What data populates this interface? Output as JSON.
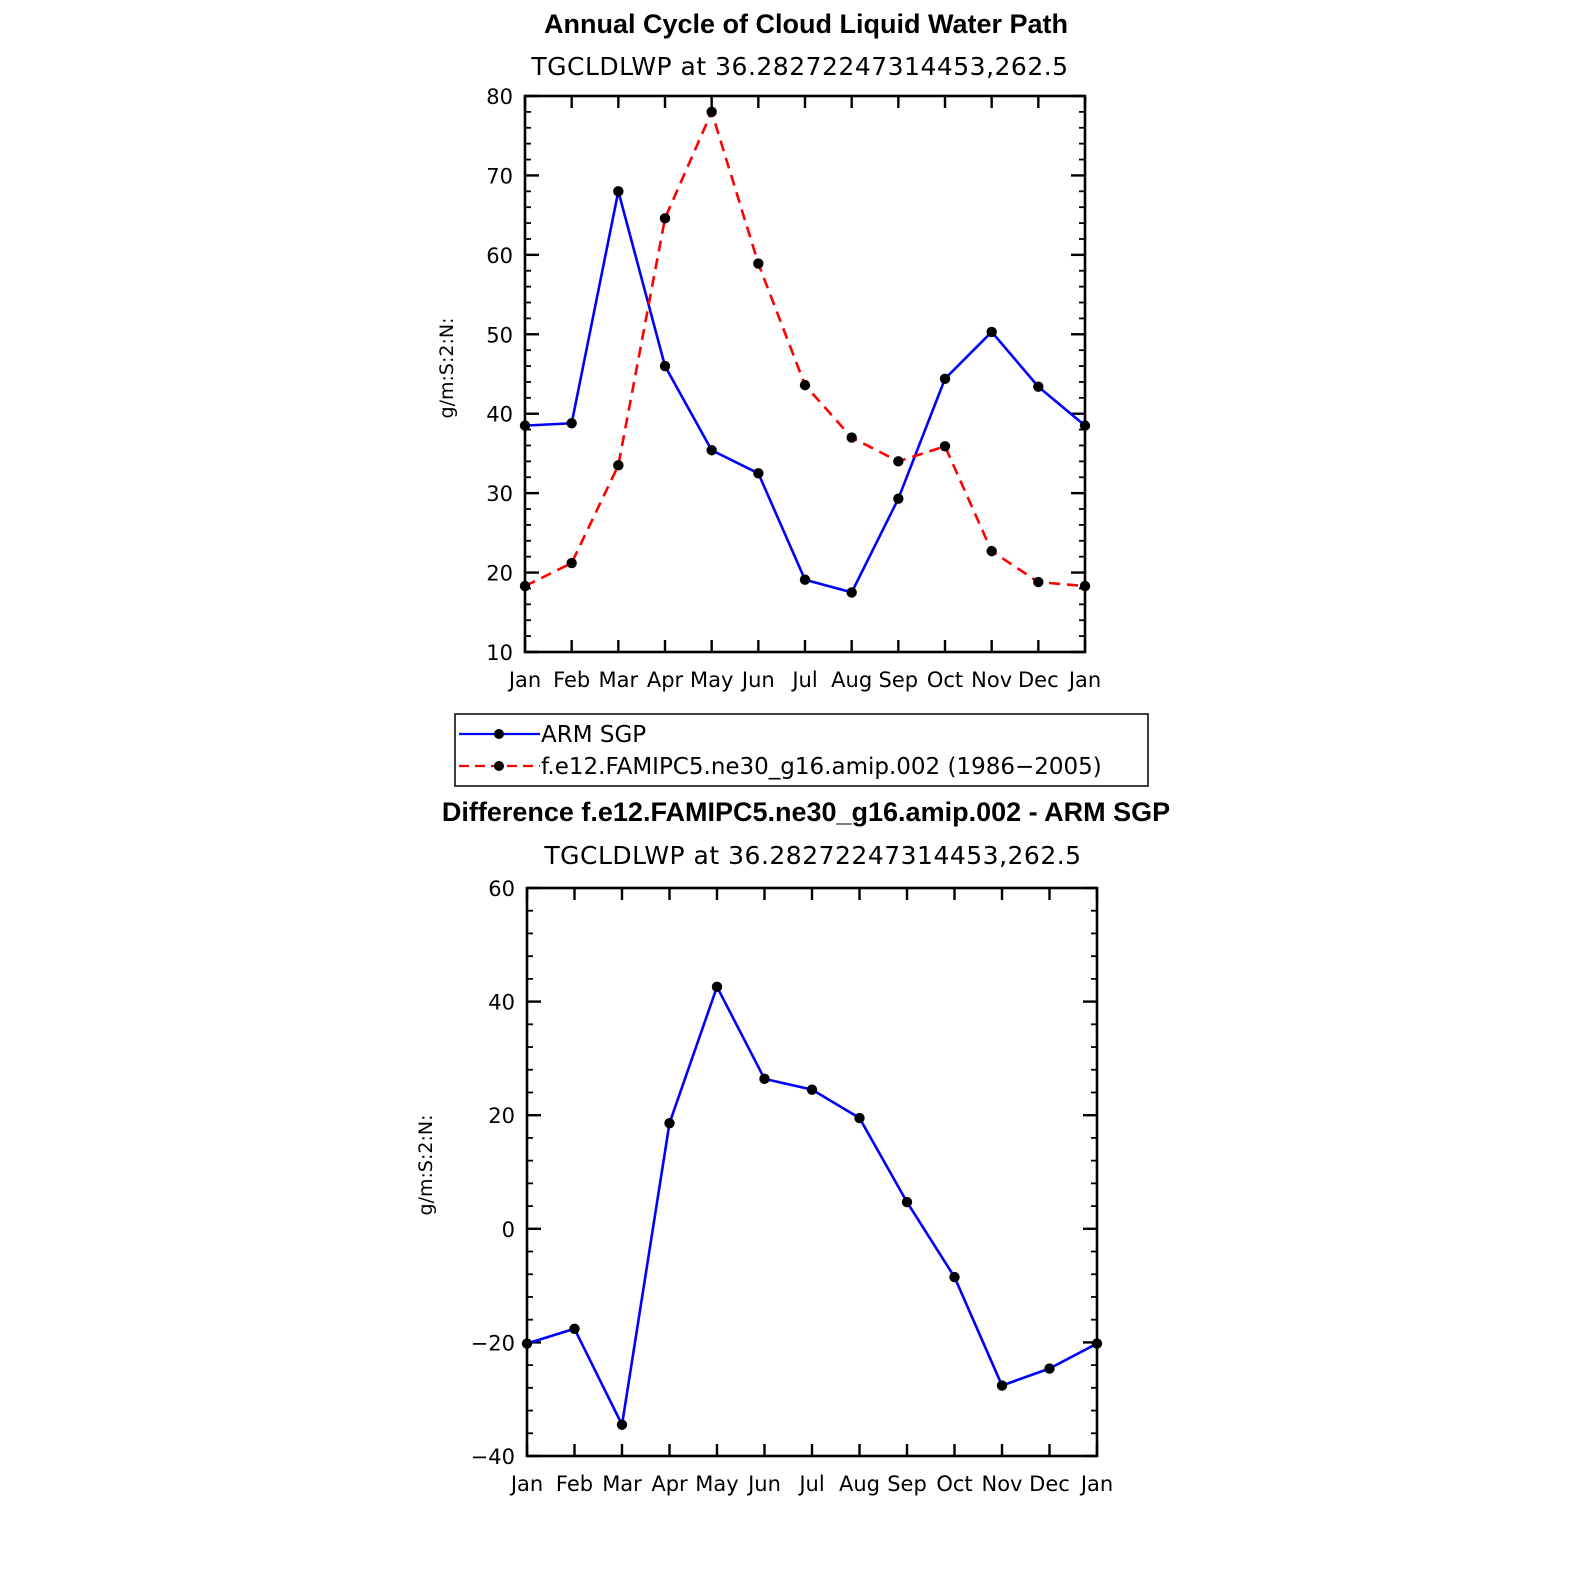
{
  "chart_data": [
    {
      "type": "line",
      "title": "Annual Cycle of Cloud Liquid Water Path",
      "subtitle": "TGCLDLWP at 36.28272247314453,262.5",
      "ylabel": "g/m:S:2:N:",
      "xlabel": "",
      "categories": [
        "Jan",
        "Feb",
        "Mar",
        "Apr",
        "May",
        "Jun",
        "Jul",
        "Aug",
        "Sep",
        "Oct",
        "Nov",
        "Dec",
        "Jan"
      ],
      "ylim": [
        10,
        80
      ],
      "yticks": [
        10,
        20,
        30,
        40,
        50,
        60,
        70,
        80
      ],
      "series": [
        {
          "name": "ARM SGP",
          "color": "#0000ff",
          "style": "solid",
          "values": [
            38.5,
            38.8,
            68.0,
            46.0,
            35.4,
            32.5,
            19.1,
            17.5,
            29.3,
            44.4,
            50.3,
            43.4,
            38.5
          ]
        },
        {
          "name": "f.e12.FAMIPC5.ne30_g16.amip.002 (1986−2005)",
          "color": "#ff0000",
          "style": "dashed",
          "values": [
            18.3,
            21.2,
            33.5,
            64.6,
            78.0,
            58.9,
            43.6,
            37.0,
            34.0,
            35.9,
            22.7,
            18.8,
            18.3
          ]
        }
      ],
      "legend_position": "bottom"
    },
    {
      "type": "line",
      "title": "Difference f.e12.FAMIPC5.ne30_g16.amip.002 - ARM SGP",
      "subtitle": "TGCLDLWP at 36.28272247314453,262.5",
      "ylabel": "g/m:S:2:N:",
      "xlabel": "",
      "categories": [
        "Jan",
        "Feb",
        "Mar",
        "Apr",
        "May",
        "Jun",
        "Jul",
        "Aug",
        "Sep",
        "Oct",
        "Nov",
        "Dec",
        "Jan"
      ],
      "ylim": [
        -40,
        60
      ],
      "yticks": [
        -40,
        -20,
        0,
        20,
        40,
        60
      ],
      "ytick_labels": [
        "−40",
        "−20",
        "0",
        "20",
        "40",
        "60"
      ],
      "series": [
        {
          "name": "Difference",
          "color": "#0000ff",
          "style": "solid",
          "values": [
            -20.2,
            -17.6,
            -34.5,
            18.6,
            42.6,
            26.4,
            24.5,
            19.5,
            4.7,
            -8.5,
            -27.6,
            -24.6,
            -20.2
          ]
        }
      ]
    }
  ]
}
